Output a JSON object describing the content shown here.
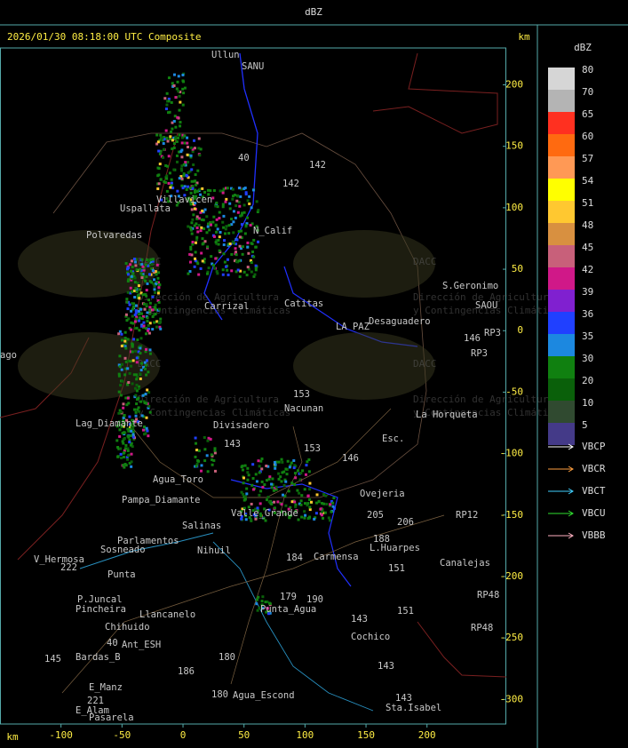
{
  "header": {
    "title": "dBZ"
  },
  "map": {
    "title": "2026/01/30 08:18:00 UTC Composite",
    "x_unit": "km",
    "y_unit": "km",
    "xlim": [
      -150,
      265
    ],
    "ylim": [
      -320,
      230
    ],
    "xticks": [
      -100,
      -50,
      0,
      50,
      100,
      150,
      200
    ],
    "yticks": [
      200,
      150,
      100,
      50,
      0,
      -50,
      -100,
      -150,
      -200,
      -250,
      -300
    ],
    "watermark": {
      "logo": "DACC",
      "line1": "Dirección de Agricultura",
      "line2": "y Contingencias Climáticas"
    },
    "places": [
      "Ullun",
      "SANU",
      "40",
      "142",
      "142",
      "Uspallata",
      "Villavicen",
      "N_Calif",
      "Polvaredas",
      "Carrizal",
      "Catitas",
      "S.Geronimo",
      "SAOU",
      "Desaguadero",
      "LA PAZ",
      "RP3",
      "146",
      "RP3",
      "153",
      "Nacunan",
      "La Horqueta",
      "Divisadero",
      "Lag_Diamante",
      "Esc.",
      "143",
      "153",
      "146",
      "Agua_Toro",
      "Pampa_Diamante",
      "Valle_Grande",
      "Ovejeria",
      "205",
      "206",
      "RP12",
      "Salinas",
      "Parlamentos",
      "Sosneado",
      "188",
      "L.Huarpes",
      "Canalejas",
      "Carmensa",
      "184",
      "V_Hermosa",
      "222",
      "Nihuil",
      "Punta",
      "151",
      "P.Juncal",
      "Pincheira",
      "Llancanelo",
      "Punta_Agua",
      "179",
      "190",
      "RP48",
      "RP48",
      "143",
      "151",
      "Chihuido",
      "Ant_ESH",
      "40",
      "Bardas_B",
      "145",
      "Cochico",
      "180",
      "186",
      "143",
      "E_Manz",
      "221",
      "E_Alam",
      "Pasarela",
      "180",
      "Agua_Escond",
      "143",
      "Sta.Isabel",
      "ago"
    ]
  },
  "legend": {
    "title": "dBZ",
    "levels": [
      {
        "label": 80,
        "color": "#d6d6d6"
      },
      {
        "label": 70,
        "color": "#b4b4b4"
      },
      {
        "label": 65,
        "color": "#ff3020"
      },
      {
        "label": 60,
        "color": "#ff6a10"
      },
      {
        "label": 57,
        "color": "#ff9955"
      },
      {
        "label": 54,
        "color": "#ffff00"
      },
      {
        "label": 51,
        "color": "#ffc830"
      },
      {
        "label": 48,
        "color": "#d89040"
      },
      {
        "label": 45,
        "color": "#c8607a"
      },
      {
        "label": 42,
        "color": "#d01888"
      },
      {
        "label": 39,
        "color": "#8020d0"
      },
      {
        "label": 36,
        "color": "#2040ff"
      },
      {
        "label": 35,
        "color": "#1c88e0"
      },
      {
        "label": 30,
        "color": "#108010"
      },
      {
        "label": 20,
        "color": "#0a600a"
      },
      {
        "label": 10,
        "color": "#304a30"
      },
      {
        "label": 5,
        "color": "#443a88"
      }
    ],
    "radars": [
      {
        "name": "VBCP",
        "color": "#ffffff"
      },
      {
        "name": "VBCR",
        "color": "#ffa040"
      },
      {
        "name": "VBCT",
        "color": "#40d0ff"
      },
      {
        "name": "VBCU",
        "color": "#30e030"
      },
      {
        "name": "VBBB",
        "color": "#ffb0c0"
      }
    ]
  }
}
